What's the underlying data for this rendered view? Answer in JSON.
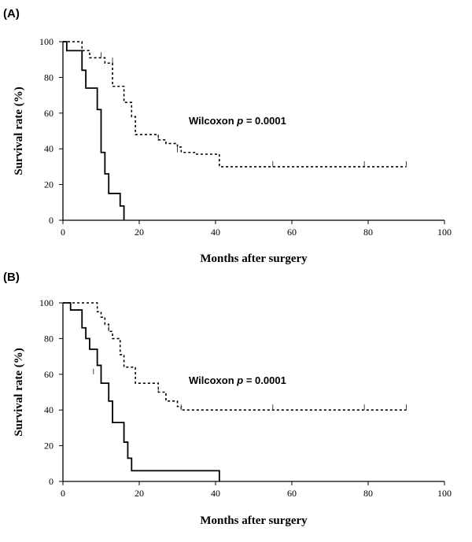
{
  "chart_data": [
    {
      "type": "line",
      "panel_label": "(A)",
      "xlabel": "Months after surgery",
      "ylabel": "Survival rate (%)",
      "xlim": [
        0,
        100
      ],
      "ylim": [
        0,
        100
      ],
      "xticks": [
        0,
        20,
        40,
        60,
        80,
        100
      ],
      "yticks": [
        0,
        20,
        40,
        60,
        80,
        100
      ],
      "annotation": {
        "prefix": "Wilcoxon ",
        "italic": "p",
        "suffix": " = 0.0001"
      },
      "series": [
        {
          "style": "solid",
          "x": [
            0,
            1,
            5,
            6,
            9,
            10,
            11,
            12,
            15,
            16
          ],
          "y": [
            100,
            95,
            84,
            74,
            62,
            38,
            26,
            15,
            8,
            0
          ],
          "censored": []
        },
        {
          "style": "dashed",
          "x": [
            0,
            5,
            7,
            11,
            13,
            16,
            18,
            19,
            25,
            27,
            30,
            31,
            35,
            41,
            90
          ],
          "y": [
            100,
            95,
            91,
            88,
            75,
            66,
            58,
            48,
            45,
            43,
            41,
            38,
            37,
            30,
            30
          ],
          "censored": [
            {
              "x": 10,
              "y": 91
            },
            {
              "x": 13,
              "y": 88
            },
            {
              "x": 25,
              "y": 45
            },
            {
              "x": 30,
              "y": 38
            },
            {
              "x": 55,
              "y": 30
            },
            {
              "x": 79,
              "y": 30
            },
            {
              "x": 90,
              "y": 30
            }
          ]
        }
      ]
    },
    {
      "type": "line",
      "panel_label": "(B)",
      "xlabel": "Months after surgery",
      "ylabel": "Survival rate (%)",
      "xlim": [
        0,
        100
      ],
      "ylim": [
        0,
        100
      ],
      "xticks": [
        0,
        20,
        40,
        60,
        80,
        100
      ],
      "yticks": [
        0,
        20,
        40,
        60,
        80,
        100
      ],
      "annotation": {
        "prefix": "Wilcoxon ",
        "italic": "p",
        "suffix": " = 0.0001"
      },
      "series": [
        {
          "style": "solid",
          "x": [
            0,
            2,
            5,
            6,
            7,
            9,
            10,
            12,
            13,
            16,
            17,
            18,
            41
          ],
          "y": [
            100,
            96,
            86,
            80,
            74,
            65,
            55,
            45,
            33,
            22,
            13,
            6,
            0
          ],
          "censored": [
            {
              "x": 8,
              "y": 60
            }
          ]
        },
        {
          "style": "dashed",
          "x": [
            0,
            9,
            10,
            11,
            12,
            13,
            15,
            16,
            19,
            25,
            27,
            30,
            31,
            90
          ],
          "y": [
            100,
            95,
            92,
            88,
            84,
            80,
            71,
            64,
            55,
            50,
            45,
            42,
            40,
            40
          ],
          "censored": [
            {
              "x": 12,
              "y": 84
            },
            {
              "x": 25,
              "y": 50
            },
            {
              "x": 31,
              "y": 40
            },
            {
              "x": 55,
              "y": 40
            },
            {
              "x": 79,
              "y": 40
            },
            {
              "x": 90,
              "y": 40
            }
          ]
        }
      ]
    }
  ]
}
